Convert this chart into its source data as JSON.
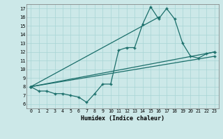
{
  "xlabel": "Humidex (Indice chaleur)",
  "background_color": "#cce8e8",
  "line_color": "#1a6e6a",
  "xlim": [
    -0.5,
    23.5
  ],
  "ylim": [
    5.5,
    17.5
  ],
  "xticks": [
    0,
    1,
    2,
    3,
    4,
    5,
    6,
    7,
    8,
    9,
    10,
    11,
    12,
    13,
    14,
    15,
    16,
    17,
    18,
    19,
    20,
    21,
    22,
    23
  ],
  "yticks": [
    6,
    7,
    8,
    9,
    10,
    11,
    12,
    13,
    14,
    15,
    16,
    17
  ],
  "line1_x": [
    0,
    1,
    2,
    3,
    4,
    5,
    6,
    7,
    8,
    9,
    10,
    11,
    12,
    13,
    14,
    15,
    16,
    17,
    18,
    19,
    20,
    21,
    22,
    23
  ],
  "line1_y": [
    8.0,
    7.5,
    7.5,
    7.2,
    7.2,
    7.0,
    6.8,
    6.2,
    7.2,
    8.3,
    8.3,
    12.2,
    12.5,
    12.5,
    15.2,
    17.2,
    15.8,
    17.0,
    15.8,
    13.0,
    11.5,
    11.3,
    11.8,
    12.0
  ],
  "line2_x": [
    0,
    16
  ],
  "line2_y": [
    8.0,
    16.0
  ],
  "line3_x": [
    0,
    23
  ],
  "line3_y": [
    8.0,
    12.0
  ],
  "line4_x": [
    0,
    23
  ],
  "line4_y": [
    8.0,
    11.5
  ]
}
